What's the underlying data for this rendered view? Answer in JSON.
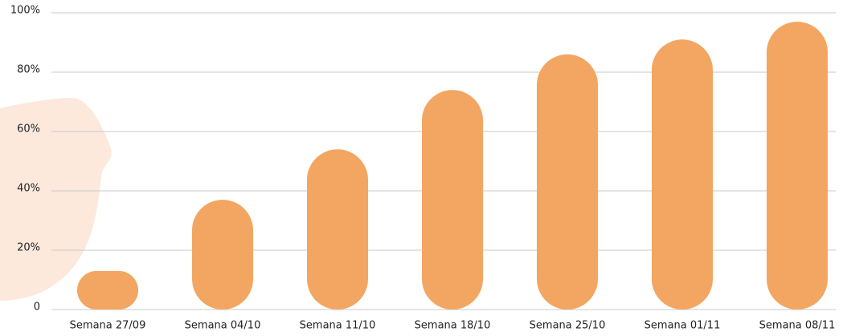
{
  "chart_data": {
    "type": "bar",
    "categories": [
      "Semana 27/09",
      "Semana 04/10",
      "Semana 11/10",
      "Semana 18/10",
      "Semana 25/10",
      "Semana 01/11",
      "Semana 08/11"
    ],
    "values": [
      13,
      37,
      54,
      74,
      86,
      91,
      97
    ],
    "color": "#f2a661",
    "ylim": [
      0,
      100
    ],
    "yticks": [
      0,
      {
        "value": 20,
        "label": "20%"
      },
      {
        "value": 40,
        "label": "40%"
      },
      {
        "value": 60,
        "label": "60%"
      },
      {
        "value": 80,
        "label": "80%"
      },
      {
        "value": 100,
        "label": "100%"
      }
    ],
    "grid": true
  }
}
